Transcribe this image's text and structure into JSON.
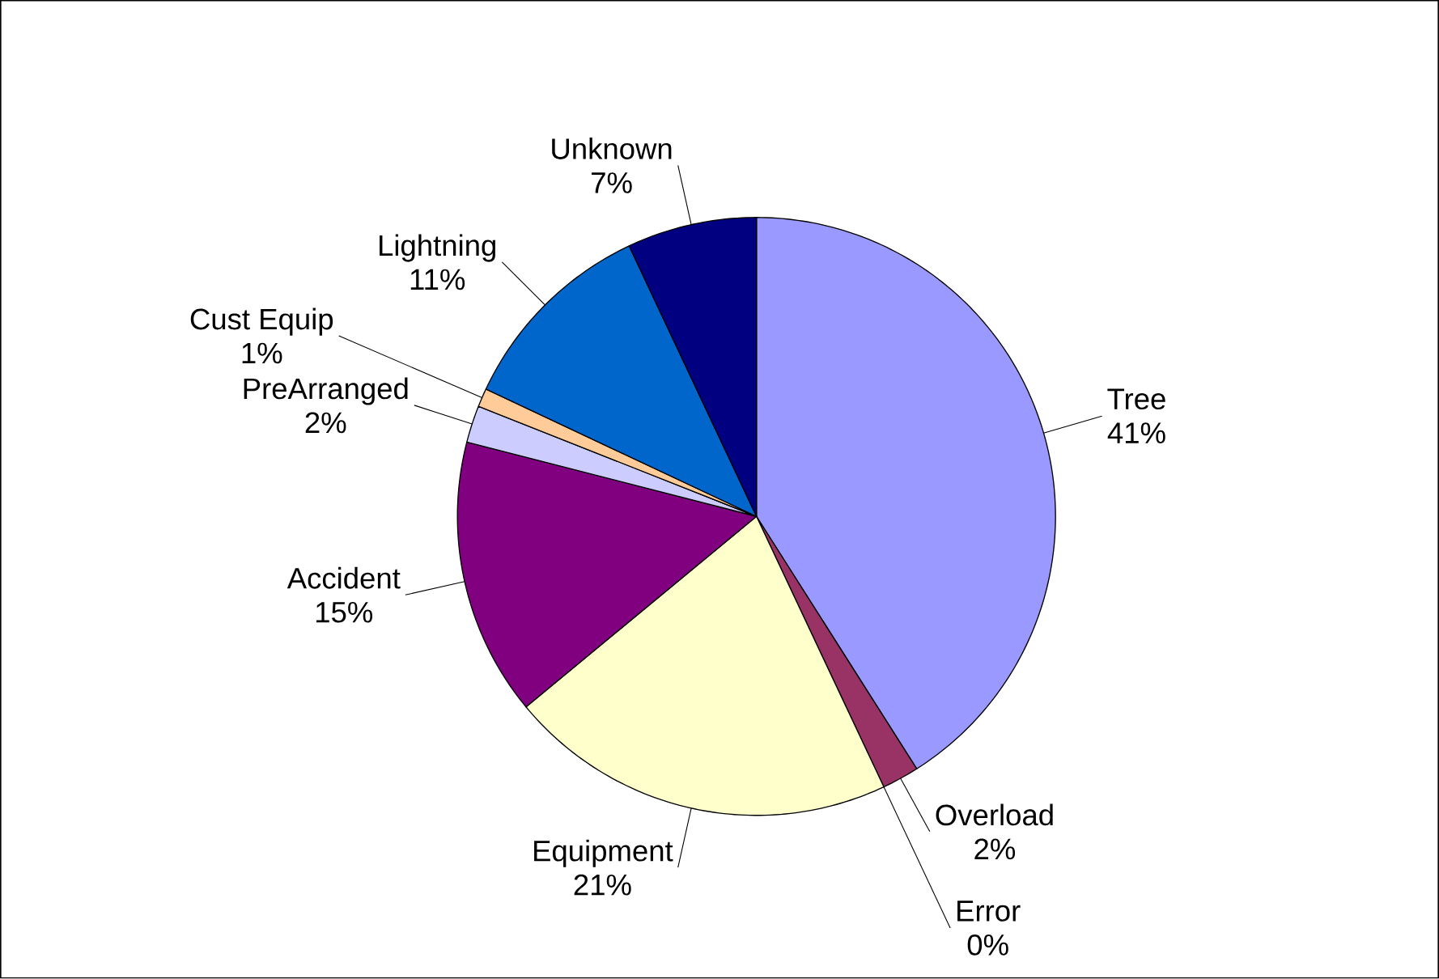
{
  "chart_data": {
    "type": "pie",
    "categories": [
      "Tree",
      "Overload",
      "Error",
      "Equipment",
      "Accident",
      "PreArranged",
      "Cust Equip",
      "Lightning",
      "Unknown"
    ],
    "values": [
      41,
      2,
      0,
      21,
      15,
      2,
      1,
      11,
      7
    ],
    "colors": [
      "#9999ff",
      "#993366",
      "#ccffff",
      "#ffffcc",
      "#800080",
      "#ccccff",
      "#ffcc99",
      "#0066cc",
      "#000080"
    ],
    "data_labels": true,
    "value_labels": [
      "41%",
      "2%",
      "0%",
      "21%",
      "15%",
      "2%",
      "1%",
      "11%",
      "7%"
    ]
  }
}
